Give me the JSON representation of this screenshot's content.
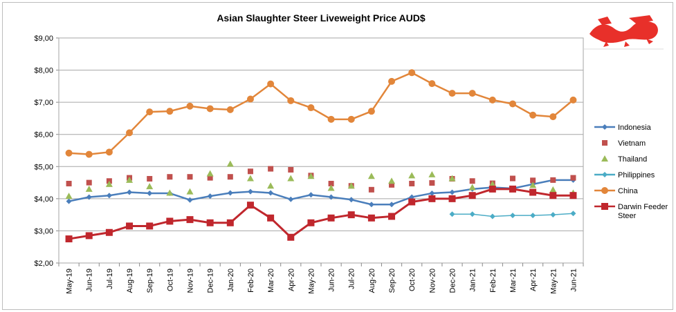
{
  "chart_data": {
    "type": "line",
    "title": "Asian Slaughter Steer Liveweight Price AUD$",
    "xlabel": "",
    "ylabel": "",
    "ylim": [
      2,
      9
    ],
    "yticks": [
      "$2,00",
      "$3,00",
      "$4,00",
      "$5,00",
      "$6,00",
      "$7,00",
      "$8,00",
      "$9,00"
    ],
    "grid": true,
    "legend_position": "right",
    "categories": [
      "May-19",
      "Jun-19",
      "Jul-19",
      "Aug-19",
      "Sep-19",
      "Oct-19",
      "Nov-19",
      "Dec-19",
      "Jan-20",
      "Feb-20",
      "Mar-20",
      "Apr-20",
      "May-20",
      "Jun-20",
      "Jul-20",
      "Aug-20",
      "Sep-20",
      "Oct-20",
      "Nov-20",
      "Dec-20",
      "Jan-21",
      "Feb-21",
      "Mar-21",
      "Apr-21",
      "May-21",
      "Jun-21"
    ],
    "series": [
      {
        "name": "Indonesia",
        "color": "#4a7ebb",
        "marker": "diamond",
        "line": true,
        "values": [
          3.92,
          4.05,
          4.1,
          4.2,
          4.17,
          4.17,
          3.96,
          4.08,
          4.18,
          4.22,
          4.18,
          3.98,
          4.12,
          4.05,
          3.97,
          3.82,
          3.82,
          4.05,
          4.17,
          4.2,
          4.3,
          4.35,
          4.32,
          4.45,
          4.58,
          4.58
        ]
      },
      {
        "name": "Vietnam",
        "color": "#c0504d",
        "marker": "square",
        "line": false,
        "values": [
          4.47,
          4.5,
          4.55,
          4.65,
          4.62,
          4.68,
          4.68,
          4.65,
          4.68,
          4.85,
          4.93,
          4.9,
          4.72,
          4.47,
          4.4,
          4.28,
          4.43,
          4.47,
          4.49,
          4.62,
          4.55,
          4.48,
          4.63,
          4.57,
          4.58,
          4.65
        ]
      },
      {
        "name": "Thailand",
        "color": "#9bbb59",
        "marker": "triangle",
        "line": false,
        "values": [
          4.08,
          4.3,
          4.45,
          4.58,
          4.38,
          4.18,
          4.22,
          4.78,
          5.08,
          4.63,
          4.4,
          4.63,
          4.7,
          4.33,
          4.4,
          4.7,
          4.55,
          4.72,
          4.75,
          4.63,
          4.35,
          4.45,
          4.3,
          4.42,
          4.28,
          4.18
        ]
      },
      {
        "name": "Philippines",
        "color": "#4bacc6",
        "marker": "diamond",
        "line": true,
        "values": [
          null,
          null,
          null,
          null,
          null,
          null,
          null,
          null,
          null,
          null,
          null,
          null,
          null,
          null,
          null,
          null,
          null,
          null,
          null,
          3.52,
          3.52,
          3.45,
          3.48,
          3.48,
          3.5,
          3.54
        ]
      },
      {
        "name": "China",
        "color": "#e2863a",
        "marker": "circle",
        "line": true,
        "values": [
          5.42,
          5.38,
          5.45,
          6.05,
          6.7,
          6.72,
          6.88,
          6.8,
          6.77,
          7.1,
          7.57,
          7.05,
          6.83,
          6.47,
          6.47,
          6.72,
          7.65,
          7.92,
          7.58,
          7.28,
          7.28,
          7.07,
          6.95,
          6.6,
          6.55,
          7.07
        ]
      },
      {
        "name": "Darwin Feeder Steer",
        "color": "#c0272d",
        "marker": "square-big",
        "line": true,
        "values": [
          2.75,
          2.85,
          2.95,
          3.15,
          3.15,
          3.3,
          3.35,
          3.25,
          3.25,
          3.8,
          3.4,
          2.8,
          3.25,
          3.4,
          3.5,
          3.4,
          3.45,
          3.9,
          4.0,
          4.0,
          4.1,
          4.3,
          4.3,
          4.2,
          4.1,
          4.1
        ]
      }
    ]
  },
  "logo": {
    "icon": "red-dragon-image",
    "color": "#e8302a"
  }
}
